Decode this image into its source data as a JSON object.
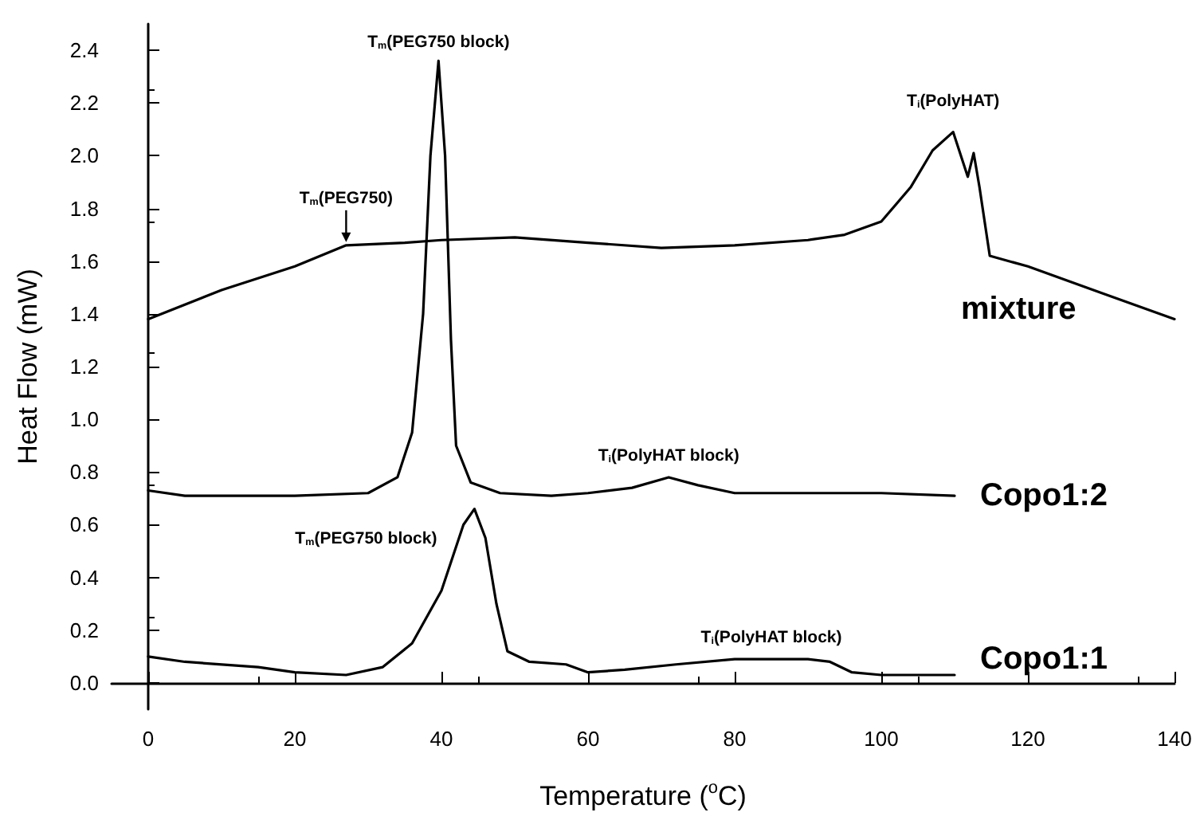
{
  "chart_data": {
    "type": "line",
    "xlabel": "Temperature ($^{o}$C)",
    "ylabel": "Heat Flow (mW)",
    "xlim": [
      -5,
      140
    ],
    "xticks": [
      0,
      20,
      40,
      60,
      80,
      100,
      120,
      140
    ],
    "ylim": [
      -0.1,
      2.5
    ],
    "yticks": [
      {
        "value": 0,
        "label": "0.0"
      },
      {
        "value": 0.2,
        "label": "0.2"
      },
      {
        "value": 0.4,
        "label": "0.4"
      },
      {
        "value": 0.6,
        "label": "0.6"
      },
      {
        "value": 0.8,
        "label": "0.8"
      },
      {
        "value": 1.0,
        "label": "1.0"
      },
      {
        "value": 1.2,
        "label": "1.2"
      },
      {
        "value": 1.4,
        "label": "1.4"
      },
      {
        "value": 1.6,
        "label": "1.6"
      },
      {
        "value": 1.8,
        "label": "1.8"
      },
      {
        "value": 2.0,
        "label": "2.0"
      },
      {
        "value": 2.2,
        "label": "2.2"
      },
      {
        "value": 2.4,
        "label": "2.4"
      }
    ],
    "grid": false,
    "legend": false,
    "marker": "none",
    "line_style": "solid",
    "series": [
      {
        "name": "mixture",
        "color": "#000000",
        "x": [
          0,
          10,
          20,
          27,
          35,
          40,
          50,
          60,
          70,
          80,
          90,
          95,
          100,
          104,
          107,
          109.8,
          111.8,
          112.6,
          113.4,
          114.8,
          120,
          130,
          140
        ],
        "values": [
          1.38,
          1.49,
          1.58,
          1.66,
          1.67,
          1.68,
          1.69,
          1.67,
          1.65,
          1.66,
          1.68,
          1.7,
          1.75,
          1.88,
          2.02,
          2.09,
          1.92,
          2.01,
          1.88,
          1.62,
          1.58,
          1.48,
          1.38
        ]
      },
      {
        "name": "Copo1:2",
        "color": "#000000",
        "x": [
          0,
          5,
          20,
          30,
          34,
          36,
          37.5,
          38.5,
          39.6,
          40.5,
          41.3,
          42,
          44,
          48,
          55,
          60,
          66,
          71,
          75,
          80,
          100,
          110
        ],
        "values": [
          0.73,
          0.71,
          0.71,
          0.72,
          0.78,
          0.95,
          1.4,
          2.0,
          2.36,
          2.0,
          1.3,
          0.9,
          0.76,
          0.72,
          0.71,
          0.72,
          0.74,
          0.78,
          0.75,
          0.72,
          0.72,
          0.71
        ]
      },
      {
        "name": "Copo1:1",
        "color": "#000000",
        "x": [
          0,
          5,
          15,
          20,
          27,
          32,
          36,
          40,
          43,
          44.5,
          46,
          47.5,
          49,
          52,
          57,
          60,
          65,
          72,
          80,
          90,
          93,
          96,
          100,
          110
        ],
        "values": [
          0.1,
          0.08,
          0.06,
          0.04,
          0.03,
          0.06,
          0.15,
          0.35,
          0.6,
          0.66,
          0.55,
          0.3,
          0.12,
          0.08,
          0.07,
          0.04,
          0.05,
          0.07,
          0.09,
          0.09,
          0.08,
          0.04,
          0.03,
          0.03
        ]
      }
    ],
    "annotations": [
      {
        "text": "T$_{m}$(PEG750 block)",
        "x": 39.6,
        "y": 2.36
      },
      {
        "text": "T$_{m}$(PEG750)",
        "x": 27,
        "y": 1.66
      },
      {
        "text": "T$_{i}$(PolyHAT)",
        "x": 109.8,
        "y": 2.09
      },
      {
        "text": "T$_{i}$(PolyHAT block)",
        "x": 71,
        "y": 0.78
      },
      {
        "text": "T$_{m}$(PEG750 block)",
        "x": 44.5,
        "y": 0.66
      },
      {
        "text": "T$_{i}$(PolyHAT block)",
        "x": 85,
        "y": 0.09
      }
    ]
  }
}
